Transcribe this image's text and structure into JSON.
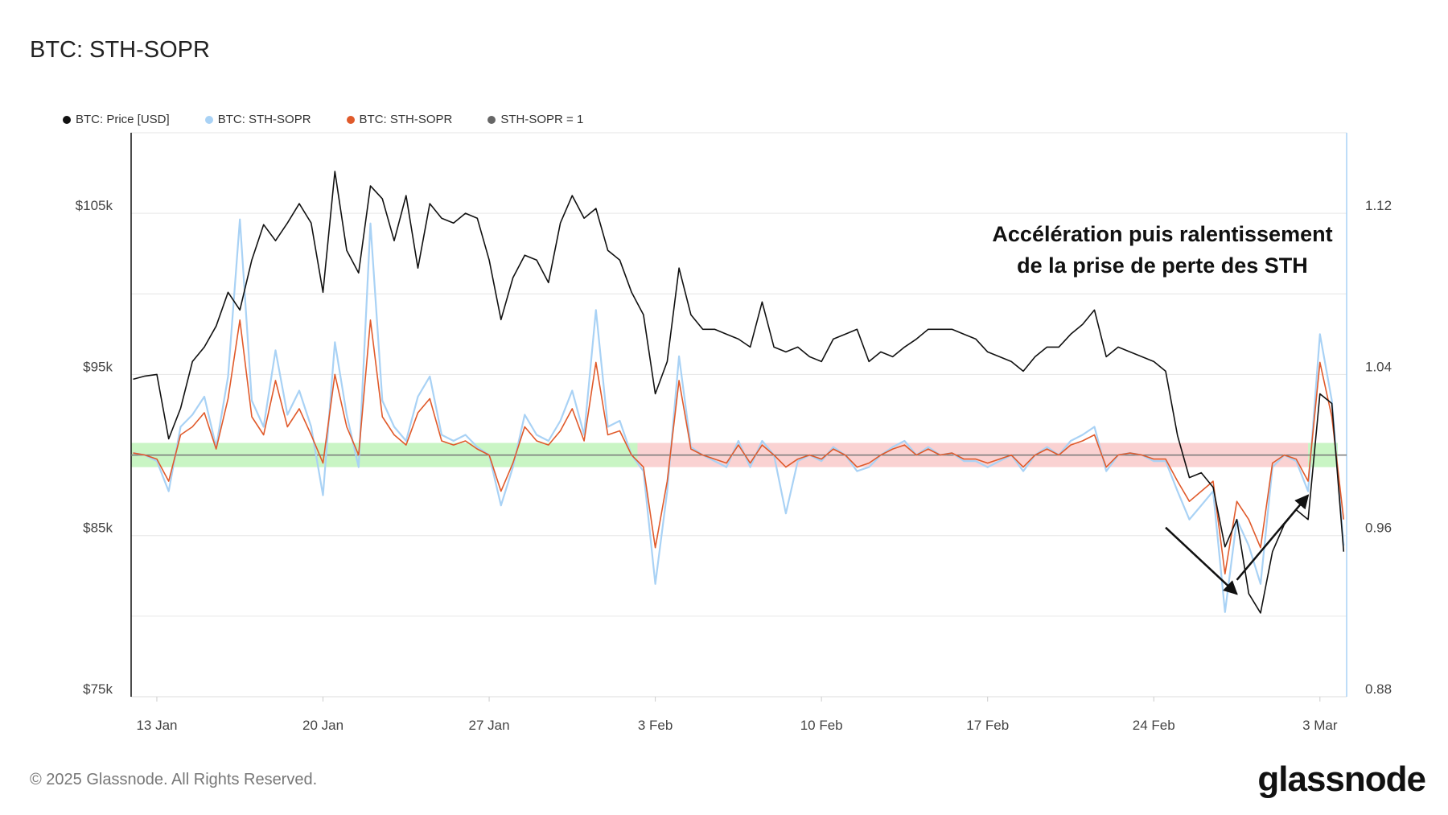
{
  "header": {
    "title": "BTC: STH-SOPR"
  },
  "legend": [
    {
      "label": "BTC: Price [USD]",
      "color": "#111111"
    },
    {
      "label": "BTC: STH-SOPR",
      "color": "#a9d2f5"
    },
    {
      "label": "BTC: STH-SOPR",
      "color": "#e05a2b"
    },
    {
      "label": "STH-SOPR = 1",
      "color": "#666666"
    }
  ],
  "annotation": {
    "line1": "Accélération puis ralentissement",
    "line2": "de la prise de perte des STH"
  },
  "footer": {
    "copyright": "© 2025 Glassnode. All Rights Reserved.",
    "logo": "glassnode"
  },
  "chart_data": {
    "type": "line",
    "xlim": [
      "2025-01-11T22:00",
      "2025-03-04T03:00"
    ],
    "x_start": "2025-01-12T00:00",
    "interval_hours": 12,
    "x_ticks": [
      {
        "date": "2025-01-13",
        "label": "13 Jan"
      },
      {
        "date": "2025-01-20",
        "label": "20 Jan"
      },
      {
        "date": "2025-01-27",
        "label": "27 Jan"
      },
      {
        "date": "2025-02-03",
        "label": "3 Feb"
      },
      {
        "date": "2025-02-10",
        "label": "10 Feb"
      },
      {
        "date": "2025-02-17",
        "label": "17 Feb"
      },
      {
        "date": "2025-02-24",
        "label": "24 Feb"
      },
      {
        "date": "2025-03-03",
        "label": "3 Mar"
      }
    ],
    "y_left": {
      "lim": [
        75000,
        110000
      ],
      "ticks": [
        {
          "v": 75000,
          "label": "$75k"
        },
        {
          "v": 85000,
          "label": "$85k"
        },
        {
          "v": 95000,
          "label": "$95k"
        },
        {
          "v": 105000,
          "label": "$105k"
        }
      ],
      "grid": [
        80000,
        85000,
        90000,
        95000,
        100000,
        105000
      ]
    },
    "y_right": {
      "lim": [
        0.88,
        1.16
      ],
      "ticks": [
        {
          "v": 0.88,
          "label": "0.88"
        },
        {
          "v": 0.96,
          "label": "0.96"
        },
        {
          "v": 1.04,
          "label": "1.04"
        },
        {
          "v": 1.12,
          "label": "1.12"
        }
      ]
    },
    "grid": true,
    "legend_position": "top-left",
    "reference_line": {
      "value": 1,
      "color": "#777777"
    },
    "bands": {
      "range": [
        0.994,
        1.006
      ],
      "segments": [
        {
          "from": "2025-01-11T22:00",
          "to": "2025-02-02T06:00",
          "color": "#c9f5c4"
        },
        {
          "from": "2025-02-02T06:00",
          "to": "2025-03-02T12:00",
          "color": "#fad2d2"
        },
        {
          "from": "2025-03-02T12:00",
          "to": "2025-03-03T18:00",
          "color": "#c9f5c4"
        }
      ]
    },
    "series": [
      {
        "name": "BTC: Price [USD]",
        "axis": "left",
        "color": "#111111",
        "values": [
          94700,
          94900,
          95000,
          91000,
          92900,
          95800,
          96700,
          98000,
          100100,
          99000,
          102100,
          104300,
          103300,
          104400,
          105600,
          104400,
          100100,
          107600,
          102700,
          101300,
          106700,
          105900,
          103300,
          106100,
          101600,
          105600,
          104700,
          104400,
          105000,
          104700,
          102100,
          98400,
          101000,
          102400,
          102100,
          100700,
          104400,
          106100,
          104700,
          105300,
          102700,
          102100,
          100100,
          98700,
          93800,
          95800,
          101600,
          98700,
          97800,
          97800,
          97500,
          97200,
          96700,
          99500,
          96700,
          96400,
          96700,
          96100,
          95800,
          97200,
          97500,
          97800,
          95800,
          96400,
          96100,
          96700,
          97200,
          97800,
          97800,
          97800,
          97500,
          97200,
          96400,
          96100,
          95800,
          95200,
          96100,
          96700,
          96700,
          97500,
          98100,
          99000,
          96100,
          96700,
          96400,
          96100,
          95800,
          95200,
          91200,
          88600,
          88900,
          88000,
          84300,
          86000,
          81400,
          80200,
          84000,
          85700,
          86600,
          86000,
          93800,
          93200,
          84000
        ]
      },
      {
        "name": "BTC: STH-SOPR",
        "axis": "right",
        "color": "#a9d2f5",
        "values": [
          1.001,
          1.0,
          0.997,
          0.982,
          1.014,
          1.02,
          1.029,
          1.004,
          1.039,
          1.117,
          1.027,
          1.014,
          1.052,
          1.02,
          1.032,
          1.014,
          0.98,
          1.056,
          1.02,
          0.994,
          1.115,
          1.027,
          1.014,
          1.007,
          1.029,
          1.039,
          1.01,
          1.007,
          1.01,
          1.004,
          1.0,
          0.975,
          0.994,
          1.02,
          1.01,
          1.007,
          1.017,
          1.032,
          1.01,
          1.072,
          1.014,
          1.017,
          1.0,
          0.992,
          0.936,
          0.982,
          1.049,
          1.004,
          1.0,
          0.997,
          0.994,
          1.007,
          0.994,
          1.007,
          1.0,
          0.971,
          0.997,
          1.0,
          0.997,
          1.004,
          1.0,
          0.992,
          0.994,
          1.0,
          1.004,
          1.007,
          1.0,
          1.004,
          1.0,
          1.001,
          0.997,
          0.997,
          0.994,
          0.997,
          1.0,
          0.992,
          1.0,
          1.004,
          1.0,
          1.007,
          1.01,
          1.014,
          0.992,
          1.0,
          1.001,
          1.0,
          0.997,
          0.997,
          0.982,
          0.968,
          0.975,
          0.982,
          0.922,
          0.968,
          0.955,
          0.936,
          0.994,
          1.0,
          0.997,
          0.982,
          1.06,
          1.027,
          0.955
        ]
      },
      {
        "name": "BTC: STH-SOPR",
        "axis": "right",
        "color": "#e05a2b",
        "values": [
          1.001,
          1.0,
          0.998,
          0.987,
          1.01,
          1.014,
          1.021,
          1.003,
          1.028,
          1.067,
          1.019,
          1.01,
          1.037,
          1.014,
          1.023,
          1.01,
          0.996,
          1.04,
          1.014,
          1.0,
          1.067,
          1.019,
          1.01,
          1.005,
          1.021,
          1.028,
          1.007,
          1.005,
          1.007,
          1.003,
          1.0,
          0.982,
          0.996,
          1.014,
          1.007,
          1.005,
          1.012,
          1.023,
          1.007,
          1.046,
          1.01,
          1.012,
          1.0,
          0.994,
          0.954,
          0.987,
          1.037,
          1.003,
          1.0,
          0.998,
          0.996,
          1.005,
          0.996,
          1.005,
          1.0,
          0.994,
          0.998,
          1.0,
          0.998,
          1.003,
          1.0,
          0.994,
          0.996,
          1.0,
          1.003,
          1.005,
          1.0,
          1.003,
          1.0,
          1.001,
          0.998,
          0.998,
          0.996,
          0.998,
          1.0,
          0.994,
          1.0,
          1.003,
          1.0,
          1.005,
          1.007,
          1.01,
          0.994,
          1.0,
          1.001,
          1.0,
          0.998,
          0.998,
          0.987,
          0.977,
          0.982,
          0.987,
          0.941,
          0.977,
          0.968,
          0.954,
          0.996,
          1.0,
          0.998,
          0.987,
          1.046,
          1.019,
          0.968
        ]
      }
    ],
    "arrows": [
      {
        "from": {
          "date": "2025-02-24T12:00",
          "sopr": 0.964
        },
        "to": {
          "date": "2025-02-27T12:00",
          "sopr": 0.931
        }
      },
      {
        "from": {
          "date": "2025-02-27T12:00",
          "sopr": 0.938
        },
        "to": {
          "date": "2025-03-02T12:00",
          "sopr": 0.98
        }
      }
    ]
  }
}
